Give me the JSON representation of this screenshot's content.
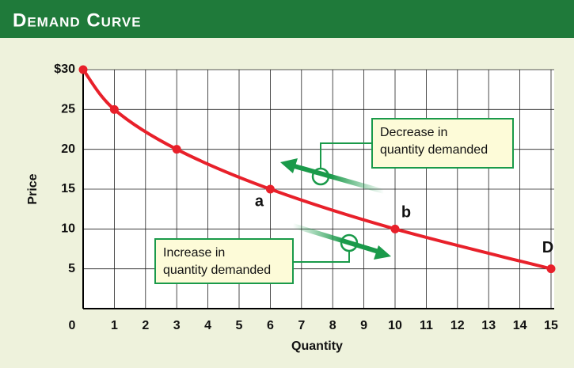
{
  "chart_data": {
    "type": "line",
    "title": "Demand Curve",
    "x_label": "Quantity",
    "y_label": "Price",
    "x": [
      0,
      1,
      3,
      6,
      10,
      15
    ],
    "series": [
      {
        "name": "D",
        "color": "#e8202a",
        "values": [
          30,
          25,
          20,
          15,
          10,
          5
        ]
      }
    ],
    "point_labels": [
      "a",
      "b"
    ],
    "callouts": [
      {
        "lines": [
          "Decrease in",
          "quantity demanded"
        ]
      },
      {
        "lines": [
          "Increase in",
          "quantity demanded"
        ]
      }
    ],
    "xlim": [
      0,
      15
    ],
    "ylim": [
      0,
      30
    ],
    "xticks": [
      0,
      1,
      2,
      3,
      4,
      5,
      6,
      7,
      8,
      9,
      10,
      11,
      12,
      13,
      14,
      15
    ],
    "yticks": [
      5,
      10,
      15,
      20,
      25,
      {
        "value": 30,
        "label": "$30"
      }
    ],
    "grid": true
  }
}
